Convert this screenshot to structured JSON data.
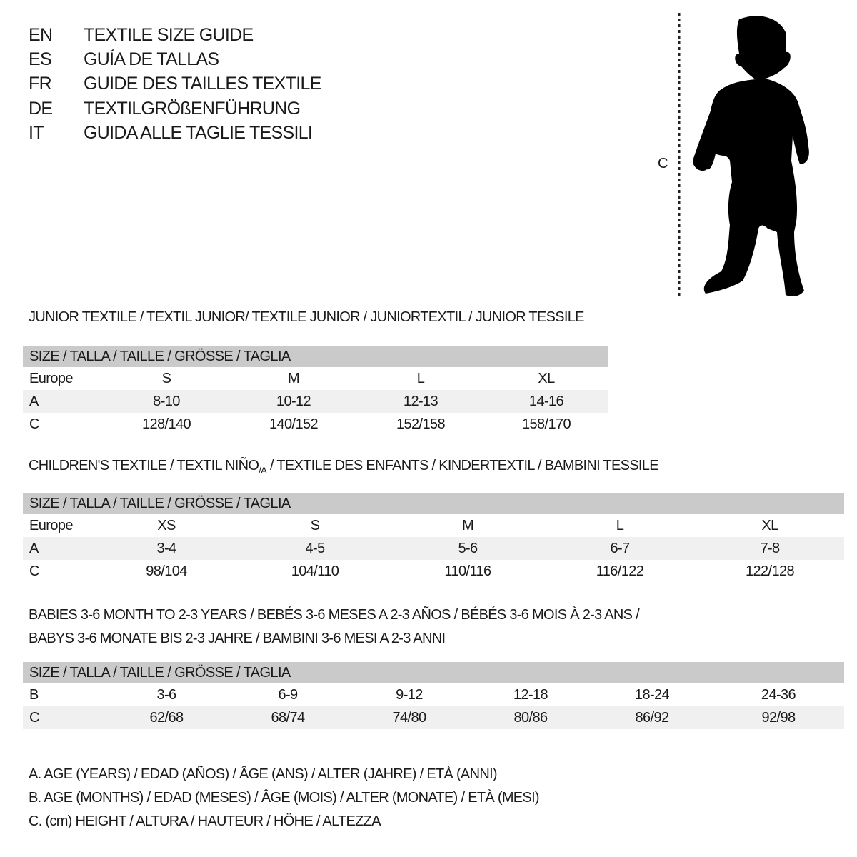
{
  "languages": [
    {
      "code": "EN",
      "title": "TEXTILE SIZE GUIDE"
    },
    {
      "code": "ES",
      "title": "GUÍA DE TALLAS"
    },
    {
      "code": "FR",
      "title": "GUIDE DES TAILLES TEXTILE"
    },
    {
      "code": "DE",
      "title": "TEXTILGRÖßENFÜHRUNG"
    },
    {
      "code": "IT",
      "title": "GUIDA ALLE TAGLIE TESSILI"
    }
  ],
  "figure": {
    "measure_label": "C",
    "icon": "baby-silhouette"
  },
  "junior": {
    "title": "JUNIOR TEXTILE / TEXTIL JUNIOR/ TEXTILE JUNIOR / JUNIORTEXTIL / JUNIOR TESSILE",
    "header": "SIZE / TALLA / TAILLE / GRÖSSE / TAGLIA",
    "rows": [
      {
        "label": "Europe",
        "values": [
          "S",
          "M",
          "L",
          "XL"
        ]
      },
      {
        "label": "A",
        "values": [
          "8-10",
          "10-12",
          "12-13",
          "14-16"
        ]
      },
      {
        "label": "C",
        "values": [
          "128/140",
          "140/152",
          "152/158",
          "158/170"
        ]
      }
    ]
  },
  "children": {
    "title_main": "CHILDREN'S TEXTILE / TEXTIL NIÑO",
    "title_sub": "/A",
    "title_rest": " / TEXTILE DES ENFANTS / KINDERTEXTIL / BAMBINI TESSILE",
    "header": "SIZE / TALLA / TAILLE / GRÖSSE / TAGLIA",
    "rows": [
      {
        "label": "Europe",
        "values": [
          "XS",
          "S",
          "M",
          "L",
          "XL"
        ]
      },
      {
        "label": "A",
        "values": [
          "3-4",
          "4-5",
          "5-6",
          "6-7",
          "7-8"
        ]
      },
      {
        "label": "C",
        "values": [
          "98/104",
          "104/110",
          "110/116",
          "116/122",
          "122/128"
        ]
      }
    ]
  },
  "babies": {
    "title_line1": "BABIES 3-6 MONTH TO 2-3 YEARS / BEBÉS 3-6 MESES A 2-3 AÑOS / BÉBÉS 3-6 MOIS À 2-3 ANS /",
    "title_line2": "BABYS 3-6 MONATE BIS 2-3 JAHRE / BAMBINI 3-6 MESI A 2-3 ANNI",
    "header": "SIZE / TALLA / TAILLE / GRÖSSE / TAGLIA",
    "rows": [
      {
        "label": "B",
        "values": [
          "3-6",
          "6-9",
          "9-12",
          "12-18",
          "18-24",
          "24-36"
        ]
      },
      {
        "label": "C",
        "values": [
          "62/68",
          "68/74",
          "74/80",
          "80/86",
          "86/92",
          "92/98"
        ]
      }
    ]
  },
  "legend": [
    "A. AGE (YEARS) / EDAD (AÑOS) / ÂGE (ANS) / ALTER (JAHRE) / ETÀ (ANNI)",
    "B. AGE (MONTHS) / EDAD (MESES) / ÂGE (MOIS) / ALTER (MONATE) / ETÀ (MESI)",
    "C. (cm) HEIGHT / ALTURA / HAUTEUR / HÖHE / ALTEZZA"
  ],
  "colors": {
    "header_bg": "#cacaca",
    "alt_row_bg": "#f0f0f0",
    "text": "#1a1a1a"
  }
}
